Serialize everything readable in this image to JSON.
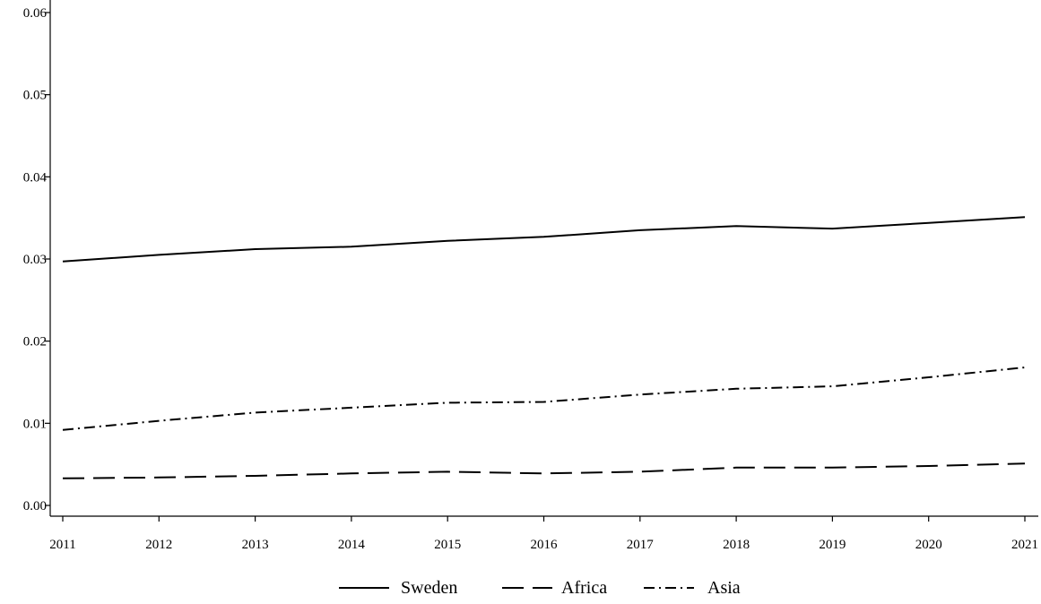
{
  "chart_data": {
    "type": "line",
    "x": [
      2011,
      2012,
      2013,
      2014,
      2015,
      2016,
      2017,
      2018,
      2019,
      2020,
      2021
    ],
    "series": [
      {
        "name": "Sweden",
        "style": "solid",
        "values": [
          0.0297,
          0.0305,
          0.0312,
          0.0315,
          0.0322,
          0.0327,
          0.0335,
          0.034,
          0.0337,
          0.0344,
          0.0351
        ]
      },
      {
        "name": "Africa",
        "style": "dashed",
        "values": [
          0.0033,
          0.0034,
          0.0036,
          0.0039,
          0.0041,
          0.0039,
          0.0041,
          0.0046,
          0.0046,
          0.0048,
          0.0051
        ]
      },
      {
        "name": "Asia",
        "style": "dash-dot",
        "values": [
          0.0092,
          0.0103,
          0.0113,
          0.0119,
          0.0125,
          0.0126,
          0.0135,
          0.0142,
          0.0145,
          0.0156,
          0.0168
        ]
      }
    ],
    "ylim": [
      0,
      0.06
    ],
    "yticks": [
      "0.00",
      "0.01",
      "0.02",
      "0.03",
      "0.04",
      "0.05",
      "0.06"
    ],
    "xticks": [
      "2011",
      "2012",
      "2013",
      "2014",
      "2015",
      "2016",
      "2017",
      "2018",
      "2019",
      "2020",
      "2021"
    ],
    "title": "",
    "xlabel": "",
    "ylabel": "",
    "grid": false,
    "legend_position": "bottom-center",
    "line_color": "#000000"
  }
}
